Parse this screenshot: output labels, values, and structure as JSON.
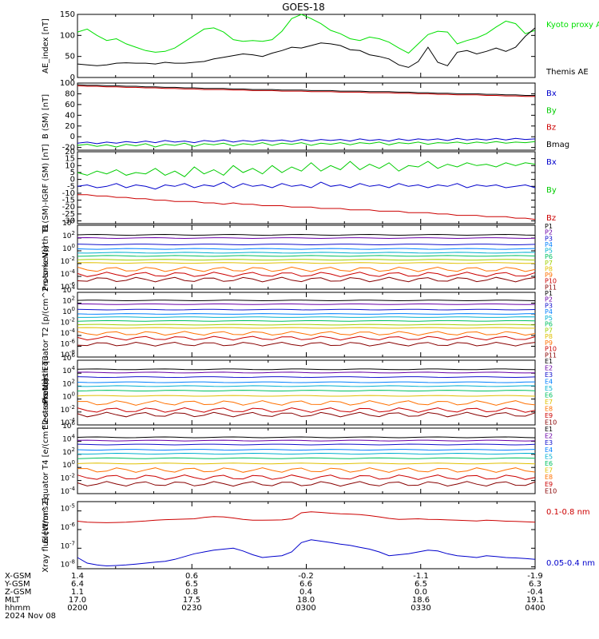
{
  "title": "GOES-18",
  "footer": {
    "row_labels": [
      "X-GSM",
      "Y-GSM",
      "Z-GSM",
      "MLT",
      "hhmm",
      "2024 Nov 08"
    ],
    "columns": [
      [
        "1.4",
        "6.4",
        "1.1",
        "17.0",
        "0200"
      ],
      [
        "0.6",
        "6.5",
        "0.8",
        "17.5",
        "0230"
      ],
      [
        "-0.2",
        "6.6",
        "0.4",
        "18.0",
        "0300"
      ],
      [
        "-1.1",
        "6.5",
        "0.0",
        "18.6",
        "0330"
      ],
      [
        "-1.9",
        "6.3",
        "-0.4",
        "19.1",
        "0400"
      ]
    ]
  },
  "chart_data": [
    {
      "type": "line",
      "ylabel": "AE_index [nT]",
      "ylim": [
        0,
        150
      ],
      "yticks": [
        "0",
        "50",
        "100",
        "150"
      ],
      "legend": [
        {
          "name": "Kyoto proxy AE",
          "color": "#00e000"
        },
        {
          "name": "Themis AE",
          "color": "#000000"
        }
      ],
      "series": [
        {
          "name": "Kyoto proxy AE",
          "color": "#00e000",
          "values": [
            108,
            115,
            100,
            88,
            92,
            80,
            72,
            64,
            60,
            62,
            70,
            85,
            100,
            115,
            118,
            108,
            90,
            86,
            88,
            86,
            90,
            110,
            140,
            150,
            140,
            128,
            112,
            104,
            92,
            88,
            96,
            92,
            84,
            70,
            58,
            80,
            102,
            110,
            108,
            80,
            88,
            94,
            104,
            120,
            134,
            128,
            104,
            112
          ]
        },
        {
          "name": "Themis AE",
          "color": "#000000",
          "values": [
            32,
            30,
            28,
            30,
            34,
            35,
            34,
            34,
            32,
            36,
            34,
            34,
            36,
            38,
            44,
            48,
            52,
            56,
            54,
            50,
            58,
            64,
            72,
            70,
            76,
            82,
            80,
            76,
            66,
            64,
            54,
            50,
            44,
            30,
            24,
            38,
            72,
            36,
            28,
            60,
            64,
            56,
            62,
            70,
            62,
            72,
            98,
            118
          ]
        }
      ]
    },
    {
      "type": "line",
      "ylabel": "B (SM) [nT]",
      "ylim": [
        -25,
        100
      ],
      "yticks": [
        "-20",
        "0",
        "20",
        "40",
        "60",
        "80",
        "100"
      ],
      "legend": [
        {
          "name": "Bx",
          "color": "#0000cc"
        },
        {
          "name": "By",
          "color": "#00cc00"
        },
        {
          "name": "Bz",
          "color": "#cc0000"
        },
        {
          "name": "Bmag",
          "color": "#000000"
        }
      ],
      "series": [
        {
          "name": "Bx",
          "color": "#0000cc",
          "values": [
            -12,
            -10,
            -13,
            -10,
            -12,
            -9,
            -11,
            -8,
            -11,
            -7,
            -10,
            -8,
            -11,
            -7,
            -9,
            -6,
            -10,
            -7,
            -9,
            -6,
            -8,
            -6,
            -9,
            -5,
            -8,
            -5,
            -7,
            -5,
            -8,
            -4,
            -7,
            -5,
            -8,
            -4,
            -7,
            -4,
            -6,
            -4,
            -7,
            -3,
            -6,
            -4,
            -6,
            -3,
            -6,
            -3,
            -5,
            -4
          ]
        },
        {
          "name": "By",
          "color": "#00cc00",
          "values": [
            -16,
            -14,
            -18,
            -15,
            -19,
            -14,
            -17,
            -13,
            -19,
            -14,
            -16,
            -12,
            -18,
            -13,
            -15,
            -12,
            -17,
            -13,
            -15,
            -11,
            -16,
            -12,
            -14,
            -11,
            -16,
            -12,
            -14,
            -11,
            -15,
            -11,
            -13,
            -10,
            -15,
            -11,
            -13,
            -10,
            -14,
            -11,
            -12,
            -10,
            -13,
            -10,
            -12,
            -9,
            -12,
            -10,
            -11,
            -9
          ]
        },
        {
          "name": "Bz",
          "color": "#cc0000",
          "values": [
            95,
            94,
            94,
            93,
            93,
            92,
            92,
            91,
            91,
            90,
            90,
            89,
            89,
            88,
            88,
            88,
            87,
            87,
            86,
            86,
            86,
            85,
            85,
            85,
            84,
            84,
            84,
            83,
            83,
            83,
            82,
            82,
            82,
            81,
            81,
            80,
            80,
            79,
            79,
            78,
            78,
            78,
            77,
            77,
            76,
            76,
            75,
            75
          ]
        },
        {
          "name": "Bmag",
          "color": "#000000",
          "values": [
            97,
            96,
            96,
            95,
            95,
            94,
            94,
            93,
            93,
            92,
            92,
            91,
            91,
            90,
            90,
            90,
            89,
            89,
            88,
            88,
            88,
            87,
            87,
            87,
            86,
            86,
            86,
            85,
            85,
            85,
            84,
            84,
            84,
            83,
            83,
            82,
            82,
            81,
            81,
            80,
            80,
            80,
            79,
            79,
            78,
            78,
            77,
            77
          ]
        }
      ]
    },
    {
      "type": "line",
      "ylabel": "B (SM)-IGRF (SM) [nT]",
      "ylim": [
        -32,
        20
      ],
      "yticks": [
        "-30",
        "-25",
        "-20",
        "-15",
        "-10",
        "-5",
        "0",
        "5",
        "10",
        "15",
        "20"
      ],
      "legend": [
        {
          "name": "Bx",
          "color": "#0000cc"
        },
        {
          "name": "By",
          "color": "#00cc00"
        },
        {
          "name": "Bz",
          "color": "#cc0000"
        }
      ],
      "series": [
        {
          "name": "Bx",
          "color": "#0000cc",
          "values": [
            -5,
            -4,
            -6,
            -5,
            -3,
            -6,
            -4,
            -5,
            -7,
            -4,
            -5,
            -3,
            -6,
            -4,
            -5,
            -2,
            -6,
            -3,
            -5,
            -4,
            -6,
            -3,
            -5,
            -4,
            -6,
            -2,
            -5,
            -4,
            -6,
            -3,
            -5,
            -4,
            -6,
            -3,
            -5,
            -4,
            -6,
            -4,
            -5,
            -3,
            -6,
            -4,
            -5,
            -4,
            -6,
            -5,
            -4,
            -6
          ]
        },
        {
          "name": "By",
          "color": "#00cc00",
          "values": [
            5,
            3,
            6,
            4,
            7,
            3,
            5,
            4,
            8,
            3,
            6,
            2,
            9,
            4,
            7,
            3,
            10,
            5,
            8,
            4,
            10,
            5,
            9,
            6,
            12,
            6,
            10,
            7,
            13,
            7,
            11,
            8,
            12,
            6,
            10,
            9,
            13,
            8,
            11,
            9,
            12,
            10,
            11,
            9,
            12,
            10,
            12,
            11
          ]
        },
        {
          "name": "Bz",
          "color": "#cc0000",
          "values": [
            -11,
            -11,
            -12,
            -12,
            -13,
            -13,
            -14,
            -14,
            -15,
            -15,
            -16,
            -16,
            -16,
            -17,
            -17,
            -18,
            -17,
            -18,
            -18,
            -19,
            -19,
            -19,
            -20,
            -20,
            -20,
            -21,
            -21,
            -21,
            -22,
            -22,
            -22,
            -23,
            -23,
            -23,
            -24,
            -24,
            -24,
            -25,
            -25,
            -26,
            -26,
            -26,
            -27,
            -27,
            -27,
            -28,
            -28,
            -29
          ]
        }
      ]
    },
    {
      "type": "line",
      "scale": "log",
      "ylabel": "Protons North T1",
      "ylim": [
        -6,
        4
      ],
      "yticks": [
        "10^-6",
        "10^-4",
        "10^-2",
        "10^0",
        "10^2",
        "10^4"
      ],
      "channels": [
        {
          "name": "P1",
          "color": "#000000",
          "level": 2.5
        },
        {
          "name": "P2",
          "color": "#6a00a8",
          "level": 2.0
        },
        {
          "name": "P3",
          "color": "#1010cc",
          "level": 1.0
        },
        {
          "name": "P4",
          "color": "#0080ff",
          "level": 0.3
        },
        {
          "name": "P5",
          "color": "#00b0d0",
          "level": -0.3
        },
        {
          "name": "P6",
          "color": "#00c060",
          "level": -0.8
        },
        {
          "name": "P7",
          "color": "#a0d000",
          "level": -1.4
        },
        {
          "name": "P8",
          "color": "#e0c000",
          "level": -1.9
        },
        {
          "name": "P9",
          "color": "#ff7000",
          "level": -2.9
        },
        {
          "name": "P10",
          "color": "#cc0000",
          "level": -3.7
        },
        {
          "name": "P11",
          "color": "#880000",
          "level": -4.5
        }
      ]
    },
    {
      "type": "line",
      "scale": "log",
      "ylabel": "Protons Equator T2 [p/(cm^2-s-sr-keV)]",
      "ylim": [
        -8,
        4
      ],
      "yticks": [
        "10^-8",
        "10^-6",
        "10^-4",
        "10^-2",
        "10^0",
        "10^2",
        "10^4"
      ],
      "channels": [
        {
          "name": "P1",
          "color": "#000000",
          "level": 2.5
        },
        {
          "name": "P2",
          "color": "#6a00a8",
          "level": 1.8
        },
        {
          "name": "P3",
          "color": "#1010cc",
          "level": 0.8
        },
        {
          "name": "P4",
          "color": "#0080ff",
          "level": 0.0
        },
        {
          "name": "P5",
          "color": "#00b0d0",
          "level": -0.6
        },
        {
          "name": "P6",
          "color": "#00c060",
          "level": -1.3
        },
        {
          "name": "P7",
          "color": "#a0d000",
          "level": -2.0
        },
        {
          "name": "P8",
          "color": "#e0c000",
          "level": -2.6
        },
        {
          "name": "P9",
          "color": "#ff7000",
          "level": -3.6
        },
        {
          "name": "P10",
          "color": "#cc0000",
          "level": -4.5
        },
        {
          "name": "P11",
          "color": "#880000",
          "level": -5.6
        }
      ]
    },
    {
      "type": "line",
      "scale": "log",
      "ylabel": "Electrons North T3",
      "ylim": [
        -4,
        6
      ],
      "yticks": [
        "10^-4",
        "10^-2",
        "10^0",
        "10^2",
        "10^4",
        "10^6"
      ],
      "channels": [
        {
          "name": "E1",
          "color": "#000000",
          "level": 4.6
        },
        {
          "name": "E2",
          "color": "#6a00a8",
          "level": 4.1
        },
        {
          "name": "E3",
          "color": "#1010cc",
          "level": 3.4
        },
        {
          "name": "E4",
          "color": "#0080ff",
          "level": 2.6
        },
        {
          "name": "E5",
          "color": "#00b0d0",
          "level": 2.0
        },
        {
          "name": "E6",
          "color": "#00c060",
          "level": 1.3
        },
        {
          "name": "E7",
          "color": "#e0c000",
          "level": 0.5
        },
        {
          "name": "E8",
          "color": "#ff7000",
          "level": -0.6
        },
        {
          "name": "E9",
          "color": "#cc0000",
          "level": -1.7
        },
        {
          "name": "E10",
          "color": "#880000",
          "level": -2.4
        }
      ]
    },
    {
      "type": "line",
      "scale": "log",
      "ylabel": "Electrons Equator T4 [e/(cm^2-s-sr-keV)]",
      "ylim": [
        -4,
        6
      ],
      "yticks": [
        "10^-4",
        "10^-2",
        "10^0",
        "10^2",
        "10^4",
        "10^6"
      ],
      "channels": [
        {
          "name": "E1",
          "color": "#000000",
          "level": 4.6
        },
        {
          "name": "E2",
          "color": "#6a00a8",
          "level": 4.1
        },
        {
          "name": "E3",
          "color": "#1010cc",
          "level": 3.5
        },
        {
          "name": "E4",
          "color": "#0080ff",
          "level": 2.7
        },
        {
          "name": "E5",
          "color": "#00b0d0",
          "level": 2.1
        },
        {
          "name": "E6",
          "color": "#00c060",
          "level": 1.4
        },
        {
          "name": "E7",
          "color": "#e0c000",
          "level": 0.6
        },
        {
          "name": "E8",
          "color": "#ff7000",
          "level": -0.4
        },
        {
          "name": "E9",
          "color": "#cc0000",
          "level": -1.5
        },
        {
          "name": "E10",
          "color": "#880000",
          "level": -2.5
        }
      ]
    },
    {
      "type": "line",
      "scale": "log",
      "ylabel": "Xray flux [W/m^2]",
      "ylim": [
        -8.1,
        -4.5
      ],
      "yticks": [
        "10^-8",
        "10^-7",
        "10^-6",
        "10^-5"
      ],
      "legend": [
        {
          "name": "0.1-0.8 nm",
          "color": "#cc0000"
        },
        {
          "name": "0.05-0.4 nm",
          "color": "#0000cc"
        }
      ],
      "series": [
        {
          "name": "0.1-0.8 nm",
          "color": "#cc0000",
          "values": [
            -5.55,
            -5.6,
            -5.62,
            -5.63,
            -5.62,
            -5.6,
            -5.57,
            -5.54,
            -5.5,
            -5.47,
            -5.45,
            -5.44,
            -5.42,
            -5.35,
            -5.3,
            -5.32,
            -5.38,
            -5.45,
            -5.5,
            -5.5,
            -5.49,
            -5.48,
            -5.42,
            -5.1,
            -5.05,
            -5.08,
            -5.12,
            -5.15,
            -5.17,
            -5.2,
            -5.25,
            -5.32,
            -5.4,
            -5.45,
            -5.44,
            -5.42,
            -5.45,
            -5.46,
            -5.48,
            -5.5,
            -5.52,
            -5.54,
            -5.5,
            -5.52,
            -5.55,
            -5.56,
            -5.58,
            -5.6
          ]
        },
        {
          "name": "0.05-0.4 nm",
          "color": "#0000cc",
          "values": [
            -7.5,
            -7.8,
            -7.9,
            -7.95,
            -7.93,
            -7.9,
            -7.85,
            -7.8,
            -7.75,
            -7.7,
            -7.6,
            -7.45,
            -7.3,
            -7.2,
            -7.1,
            -7.05,
            -7.0,
            -7.15,
            -7.35,
            -7.5,
            -7.45,
            -7.4,
            -7.2,
            -6.7,
            -6.55,
            -6.62,
            -6.7,
            -6.78,
            -6.85,
            -6.95,
            -7.05,
            -7.2,
            -7.4,
            -7.35,
            -7.3,
            -7.2,
            -7.1,
            -7.15,
            -7.3,
            -7.4,
            -7.45,
            -7.5,
            -7.4,
            -7.45,
            -7.5,
            -7.52,
            -7.55,
            -7.6
          ]
        }
      ]
    }
  ]
}
